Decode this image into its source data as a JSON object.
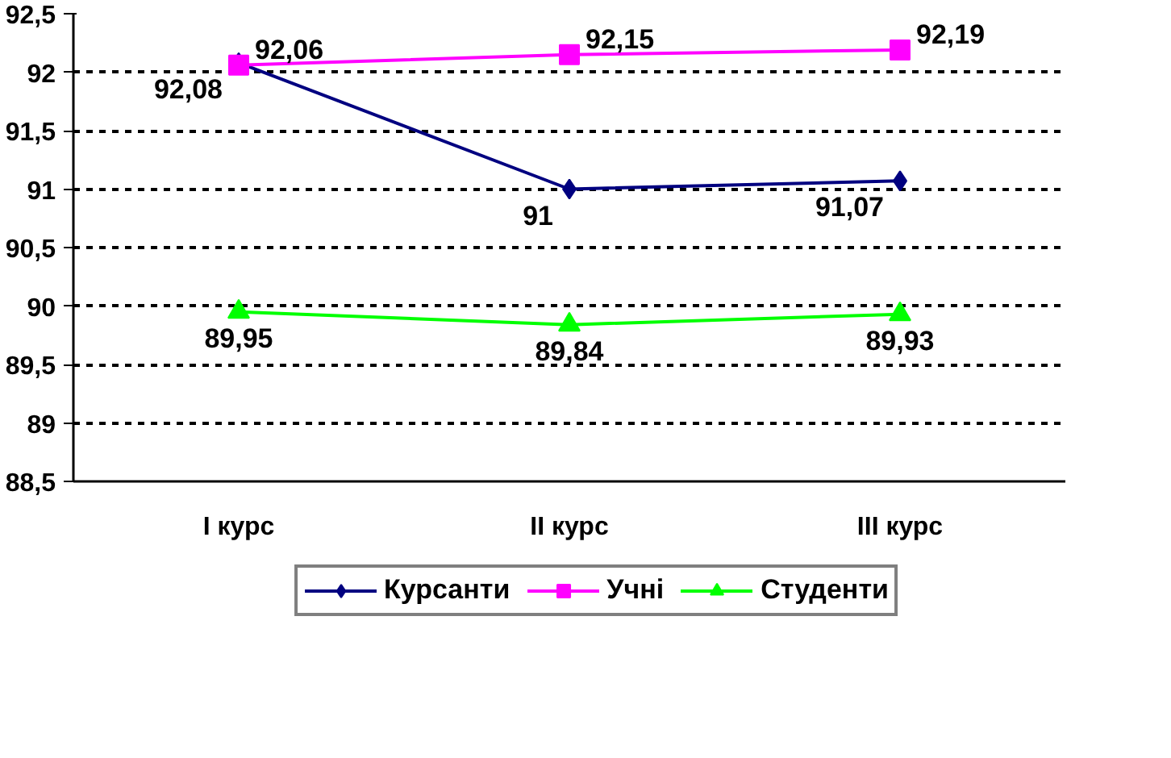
{
  "chart_data": {
    "type": "line",
    "categories": [
      "I курс",
      "II курс",
      "III курс"
    ],
    "series": [
      {
        "name": "Курсанти",
        "color": "#000080",
        "values": [
          92.08,
          91,
          91.07
        ],
        "marker": "diamond",
        "value_labels": [
          "92,08",
          "91",
          "91,07"
        ]
      },
      {
        "name": "Учні",
        "color": "#ff00ff",
        "values": [
          92.06,
          92.15,
          92.19
        ],
        "marker": "square",
        "value_labels": [
          "92,06",
          "92,15",
          "92,19"
        ]
      },
      {
        "name": "Студенти",
        "color": "#00ff00",
        "values": [
          89.95,
          89.84,
          89.93
        ],
        "marker": "triangle",
        "value_labels": [
          "89,95",
          "89,84",
          "89,93"
        ]
      }
    ],
    "ylim": [
      88.5,
      92.5
    ],
    "yticks": [
      {
        "value": 88.5,
        "label": "88,5"
      },
      89,
      {
        "value": 89.5,
        "label": "89,5"
      },
      90,
      {
        "value": 90.5,
        "label": "90,5"
      },
      91,
      {
        "value": 91.5,
        "label": "91,5"
      },
      92,
      {
        "value": 92.5,
        "label": "92,5"
      }
    ],
    "grid": "y",
    "legend": "bottom",
    "line_style": "solid"
  }
}
